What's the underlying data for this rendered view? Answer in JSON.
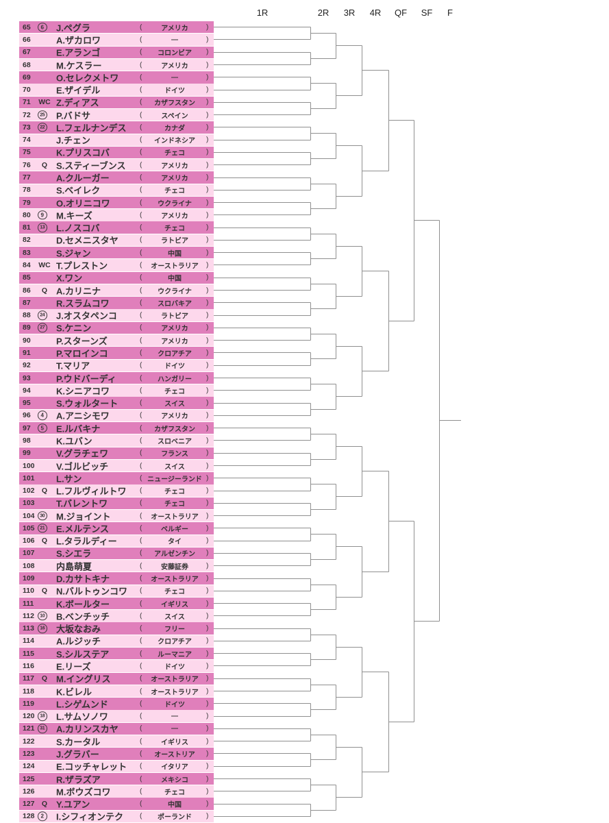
{
  "rounds": [
    "1R",
    "2R",
    "3R",
    "4R",
    "QF",
    "SF",
    "F"
  ],
  "decor": {
    "paren_open": "(",
    "paren_close": ")"
  },
  "colors": {
    "row_odd": "#e07fbb",
    "row_even": "#fdd8ec",
    "line": "#8f8f8f",
    "text": "#333333"
  },
  "rows": [
    {
      "num": "65",
      "seed": "6",
      "tag": "",
      "name": "J.ペグラ",
      "country": "アメリカ"
    },
    {
      "num": "66",
      "seed": "",
      "tag": "",
      "name": "A.ザカロワ",
      "country": "—"
    },
    {
      "num": "67",
      "seed": "",
      "tag": "",
      "name": "E.アランゴ",
      "country": "コロンビア"
    },
    {
      "num": "68",
      "seed": "",
      "tag": "",
      "name": "M.ケスラー",
      "country": "アメリカ"
    },
    {
      "num": "69",
      "seed": "",
      "tag": "",
      "name": "O.セレクメトワ",
      "country": "—"
    },
    {
      "num": "70",
      "seed": "",
      "tag": "",
      "name": "E.ザイデル",
      "country": "ドイツ"
    },
    {
      "num": "71",
      "seed": "",
      "tag": "WC",
      "name": "Z.ディアス",
      "country": "カザフスタン"
    },
    {
      "num": "72",
      "seed": "25",
      "tag": "",
      "name": "P.バドサ",
      "country": "スペイン"
    },
    {
      "num": "73",
      "seed": "22",
      "tag": "",
      "name": "L.フェルナンデス",
      "country": "カナダ"
    },
    {
      "num": "74",
      "seed": "",
      "tag": "",
      "name": "J.チェン",
      "country": "インドネシア"
    },
    {
      "num": "75",
      "seed": "",
      "tag": "",
      "name": "K.プリスコバ",
      "country": "チェコ"
    },
    {
      "num": "76",
      "seed": "",
      "tag": "Q",
      "name": "S.スティーブンス",
      "country": "アメリカ"
    },
    {
      "num": "77",
      "seed": "",
      "tag": "",
      "name": "A.クルーガー",
      "country": "アメリカ"
    },
    {
      "num": "78",
      "seed": "",
      "tag": "",
      "name": "S.ベイレク",
      "country": "チェコ"
    },
    {
      "num": "79",
      "seed": "",
      "tag": "",
      "name": "O.オリニコワ",
      "country": "ウクライナ"
    },
    {
      "num": "80",
      "seed": "9",
      "tag": "",
      "name": "M.キーズ",
      "country": "アメリカ"
    },
    {
      "num": "81",
      "seed": "13",
      "tag": "",
      "name": "L.ノスコバ",
      "country": "チェコ"
    },
    {
      "num": "82",
      "seed": "",
      "tag": "",
      "name": "D.セメニスタヤ",
      "country": "ラトビア"
    },
    {
      "num": "83",
      "seed": "",
      "tag": "",
      "name": "S.ジャン",
      "country": "中国"
    },
    {
      "num": "84",
      "seed": "",
      "tag": "WC",
      "name": "T.プレストン",
      "country": "オーストラリア"
    },
    {
      "num": "85",
      "seed": "",
      "tag": "",
      "name": "X.ワン",
      "country": "中国"
    },
    {
      "num": "86",
      "seed": "",
      "tag": "Q",
      "name": "A.カリニナ",
      "country": "ウクライナ"
    },
    {
      "num": "87",
      "seed": "",
      "tag": "",
      "name": "R.スラムコワ",
      "country": "スロバキア"
    },
    {
      "num": "88",
      "seed": "24",
      "tag": "",
      "name": "J.オスタペンコ",
      "country": "ラトビア"
    },
    {
      "num": "89",
      "seed": "27",
      "tag": "",
      "name": "S.ケニン",
      "country": "アメリカ"
    },
    {
      "num": "90",
      "seed": "",
      "tag": "",
      "name": "P.スターンズ",
      "country": "アメリカ"
    },
    {
      "num": "91",
      "seed": "",
      "tag": "",
      "name": "P.マロインコ",
      "country": "クロアチア"
    },
    {
      "num": "92",
      "seed": "",
      "tag": "",
      "name": "T.マリア",
      "country": "ドイツ"
    },
    {
      "num": "93",
      "seed": "",
      "tag": "",
      "name": "P.ウドバーディ",
      "country": "ハンガリー"
    },
    {
      "num": "94",
      "seed": "",
      "tag": "",
      "name": "K.シニアコワ",
      "country": "チェコ"
    },
    {
      "num": "95",
      "seed": "",
      "tag": "",
      "name": "S.ウォルタート",
      "country": "スイス"
    },
    {
      "num": "96",
      "seed": "4",
      "tag": "",
      "name": "A.アニシモワ",
      "country": "アメリカ"
    },
    {
      "num": "97",
      "seed": "5",
      "tag": "",
      "name": "E.ルバキナ",
      "country": "カザフスタン"
    },
    {
      "num": "98",
      "seed": "",
      "tag": "",
      "name": "K.ユバン",
      "country": "スロベニア"
    },
    {
      "num": "99",
      "seed": "",
      "tag": "",
      "name": "V.グラチェワ",
      "country": "フランス"
    },
    {
      "num": "100",
      "seed": "",
      "tag": "",
      "name": "V.ゴルビッチ",
      "country": "スイス"
    },
    {
      "num": "101",
      "seed": "",
      "tag": "",
      "name": "L.サン",
      "country": "ニュージーランド"
    },
    {
      "num": "102",
      "seed": "",
      "tag": "Q",
      "name": "L.フルヴィルトワ",
      "country": "チェコ"
    },
    {
      "num": "103",
      "seed": "",
      "tag": "",
      "name": "T.バレントワ",
      "country": "チェコ"
    },
    {
      "num": "104",
      "seed": "30",
      "tag": "",
      "name": "M.ジョイント",
      "country": "オーストラリア"
    },
    {
      "num": "105",
      "seed": "21",
      "tag": "",
      "name": "E.メルテンス",
      "country": "ベルギー"
    },
    {
      "num": "106",
      "seed": "",
      "tag": "Q",
      "name": "L.タラルディー",
      "country": "タイ"
    },
    {
      "num": "107",
      "seed": "",
      "tag": "",
      "name": "S.シエラ",
      "country": "アルゼンチン"
    },
    {
      "num": "108",
      "seed": "",
      "tag": "",
      "name": "内島萌夏",
      "country": "安藤証券"
    },
    {
      "num": "109",
      "seed": "",
      "tag": "",
      "name": "D.カサトキナ",
      "country": "オーストラリア"
    },
    {
      "num": "110",
      "seed": "",
      "tag": "Q",
      "name": "N.バルトゥンコワ",
      "country": "チェコ"
    },
    {
      "num": "111",
      "seed": "",
      "tag": "",
      "name": "K.ボールター",
      "country": "イギリス"
    },
    {
      "num": "112",
      "seed": "10",
      "tag": "",
      "name": "B.ベンチッチ",
      "country": "スイス"
    },
    {
      "num": "113",
      "seed": "16",
      "tag": "",
      "name": "大坂なおみ",
      "country": "フリー"
    },
    {
      "num": "114",
      "seed": "",
      "tag": "",
      "name": "A.ルジッチ",
      "country": "クロアチア"
    },
    {
      "num": "115",
      "seed": "",
      "tag": "",
      "name": "S.シルステア",
      "country": "ルーマニア"
    },
    {
      "num": "116",
      "seed": "",
      "tag": "",
      "name": "E.リーズ",
      "country": "ドイツ"
    },
    {
      "num": "117",
      "seed": "",
      "tag": "Q",
      "name": "M.イングリス",
      "country": "オーストラリア"
    },
    {
      "num": "118",
      "seed": "",
      "tag": "",
      "name": "K.ビレル",
      "country": "オーストラリア"
    },
    {
      "num": "119",
      "seed": "",
      "tag": "",
      "name": "L.シゲムンド",
      "country": "ドイツ"
    },
    {
      "num": "120",
      "seed": "18",
      "tag": "",
      "name": "L.サムソノワ",
      "country": "—"
    },
    {
      "num": "121",
      "seed": "31",
      "tag": "",
      "name": "A.カリンスカヤ",
      "country": "—"
    },
    {
      "num": "122",
      "seed": "",
      "tag": "",
      "name": "S.カータル",
      "country": "イギリス"
    },
    {
      "num": "123",
      "seed": "",
      "tag": "",
      "name": "J.グラバー",
      "country": "オーストリア"
    },
    {
      "num": "124",
      "seed": "",
      "tag": "",
      "name": "E.コッチャレット",
      "country": "イタリア"
    },
    {
      "num": "125",
      "seed": "",
      "tag": "",
      "name": "R.ザラズア",
      "country": "メキシコ"
    },
    {
      "num": "126",
      "seed": "",
      "tag": "",
      "name": "M.ボウズコワ",
      "country": "チェコ"
    },
    {
      "num": "127",
      "seed": "",
      "tag": "Q",
      "name": "Y.ユアン",
      "country": "中国"
    },
    {
      "num": "128",
      "seed": "2",
      "tag": "",
      "name": "I.シフィオンテク",
      "country": "ポーランド"
    }
  ]
}
